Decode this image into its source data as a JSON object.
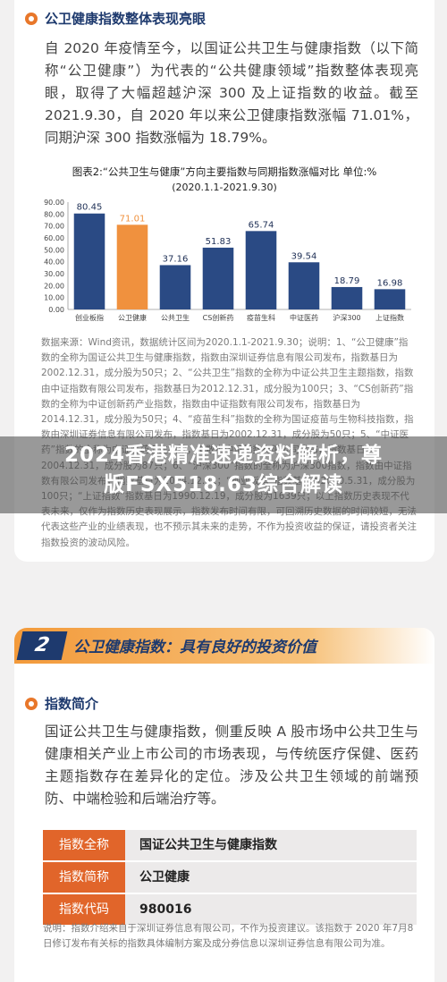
{
  "section1": {
    "title": "公卫健康指数整体表现亮眼",
    "paragraph": "自 2020 年疫情至今，以国证公共卫生与健康指数（以下简称“公卫健康”）为代表的“公共健康领域”指数整体表现亮眼，取得了大幅超越沪深 300 及上证指数的收益。截至 2021.9.30，自 2020 年以来公卫健康指数涨幅 71.01%，同期沪深 300 指数涨幅为 18.79%。"
  },
  "chart_data": {
    "type": "bar",
    "title": "图表2:“公共卫生与健康”方向主要指数与同期指数涨幅对比  单位:%",
    "subtitle": "(2020.1.1-2021.9.30)",
    "categories": [
      "创业板指",
      "公卫健康",
      "公共卫生",
      "CS创新药",
      "疫苗生科",
      "中证医药",
      "沪深300",
      "上证指数"
    ],
    "values": [
      80.45,
      71.01,
      37.16,
      51.83,
      65.74,
      39.54,
      18.79,
      16.98
    ],
    "yticks": [
      "90.00",
      "80.00",
      "70.00",
      "60.00",
      "50.00",
      "40.00",
      "30.00",
      "20.00",
      "10.00",
      "0.00"
    ],
    "ylim": [
      0,
      90
    ],
    "colors": {
      "default": "#2a4a84",
      "highlight": "#f0913e"
    },
    "highlight_index": 1,
    "grid": false,
    "legend": "none"
  },
  "source_text": "数据来源：Wind资讯，数据统计区间为2020.1.1-2021.9.30；说明：1、“公卫健康”指数的全称为国证公共卫生与健康指数，指数由深圳证券信息有限公司发布，指数基日为2002.12.31，成分股为50只；2、“公共卫生”指数的全称为中证公共卫生主题指数，指数由中证指数有限公司发布，指数基日为2012.12.31，成分股为100只；3、“CS创新药”指数的全称为中证创新药产业指数，指数由中证指数有限公司发布，指数基日为2014.12.31，成分股为50只；4、“疫苗生科”指数的全称为国证疫苗与生物科技指数，指数由深圳证券信息有限公司发布，指数基日为2002.12.31，成分股为50只；5、“中证医药”指数的全称为中证医药卫生指数，指数由中证指数有限公司发布，指数基日为2004.12.31，成分股为87只；6、“沪深300”指数的全称为沪深300指数，指数由中证指数有限公司发布，指数基日为2004.12.31；“创业板指”指数基日为2010.5.31，成分股为100只；“上证指数”指数基日为1990.12.19，成分股为1639只；以上指数历史表现不代表未来，仅作为指数历史表现展示，指数发布时间有限，可回溯历史数据的时间较短，无法代表这些产业的业绩表现，也不预示其未来的走势，不作为投资收益的保证，请投资者关注指数投资的波动风险。",
  "overlay": {
    "line1": "2024香港精准速递资料解析，尊",
    "line2": "版FSX518.63综合解读"
  },
  "section2": {
    "number": "2",
    "banner": "公卫健康指数：具有良好的投资价值",
    "subtitle": "指数简介",
    "paragraph": "国证公共卫生与健康指数，侧重反映 A 股市场中公共卫生与健康相关产业上市公司的市场表现，与传统医疗保健、医药主题指数存在差异化的定位。涉及公共卫生领域的前端预防、中端检验和后端治疗等。",
    "table": [
      {
        "label": "指数全称",
        "value": "国证公共卫生与健康指数"
      },
      {
        "label": "指数简称",
        "value": "公卫健康"
      },
      {
        "label": "指数代码",
        "value": "980016"
      }
    ],
    "note": "说明：指数介绍来自于深圳证券信息有限公司，不作为投资建议。该指数于 2020 年7月8日修订发布有关标的指数具体编制方案及成分券信息以深圳证券信息有限公司为准。"
  }
}
